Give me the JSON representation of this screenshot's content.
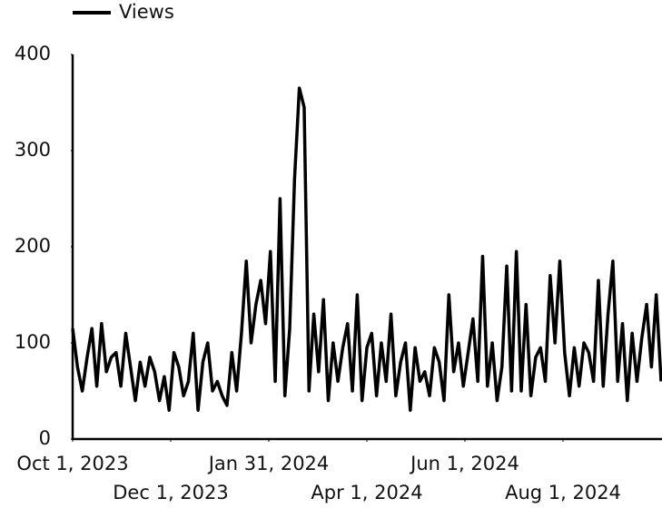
{
  "chart_data": {
    "type": "line",
    "x": [
      "2023-10-01",
      "2023-10-04",
      "2023-10-07",
      "2023-10-10",
      "2023-10-13",
      "2023-10-16",
      "2023-10-19",
      "2023-10-22",
      "2023-10-25",
      "2023-10-28",
      "2023-10-31",
      "2023-11-03",
      "2023-11-06",
      "2023-11-09",
      "2023-11-12",
      "2023-11-15",
      "2023-11-18",
      "2023-11-21",
      "2023-11-24",
      "2023-11-27",
      "2023-11-30",
      "2023-12-03",
      "2023-12-06",
      "2023-12-09",
      "2023-12-12",
      "2023-12-15",
      "2023-12-18",
      "2023-12-21",
      "2023-12-24",
      "2023-12-27",
      "2023-12-30",
      "2024-01-02",
      "2024-01-05",
      "2024-01-08",
      "2024-01-11",
      "2024-01-14",
      "2024-01-17",
      "2024-01-20",
      "2024-01-23",
      "2024-01-26",
      "2024-01-29",
      "2024-02-01",
      "2024-02-04",
      "2024-02-07",
      "2024-02-10",
      "2024-02-13",
      "2024-02-16",
      "2024-02-19",
      "2024-02-22",
      "2024-02-25",
      "2024-02-28",
      "2024-03-02",
      "2024-03-05",
      "2024-03-08",
      "2024-03-11",
      "2024-03-14",
      "2024-03-17",
      "2024-03-20",
      "2024-03-23",
      "2024-03-26",
      "2024-03-29",
      "2024-04-01",
      "2024-04-04",
      "2024-04-07",
      "2024-04-10",
      "2024-04-13",
      "2024-04-16",
      "2024-04-19",
      "2024-04-22",
      "2024-04-25",
      "2024-04-28",
      "2024-05-01",
      "2024-05-04",
      "2024-05-07",
      "2024-05-10",
      "2024-05-13",
      "2024-05-16",
      "2024-05-19",
      "2024-05-22",
      "2024-05-25",
      "2024-05-28",
      "2024-05-31",
      "2024-06-03",
      "2024-06-06",
      "2024-06-09",
      "2024-06-12",
      "2024-06-15",
      "2024-06-18",
      "2024-06-21",
      "2024-06-24",
      "2024-06-27",
      "2024-06-30",
      "2024-07-03",
      "2024-07-06",
      "2024-07-09",
      "2024-07-12",
      "2024-07-15",
      "2024-07-18",
      "2024-07-21",
      "2024-07-24",
      "2024-07-27",
      "2024-07-30",
      "2024-08-02",
      "2024-08-05",
      "2024-08-08",
      "2024-08-11",
      "2024-08-14",
      "2024-08-17",
      "2024-08-20",
      "2024-08-23",
      "2024-08-26",
      "2024-08-29",
      "2024-09-01",
      "2024-09-04",
      "2024-09-07",
      "2024-09-10",
      "2024-09-13",
      "2024-09-16",
      "2024-09-19",
      "2024-09-22",
      "2024-09-25",
      "2024-09-28",
      "2024-10-01"
    ],
    "series": [
      {
        "name": "Views",
        "color": "#000000",
        "values": [
          115,
          75,
          50,
          85,
          115,
          55,
          120,
          70,
          85,
          90,
          55,
          110,
          75,
          40,
          80,
          55,
          85,
          70,
          40,
          65,
          30,
          90,
          75,
          45,
          60,
          110,
          30,
          80,
          100,
          50,
          60,
          45,
          35,
          90,
          50,
          110,
          185,
          100,
          140,
          165,
          120,
          195,
          60,
          250,
          45,
          115,
          270,
          365,
          345,
          50,
          130,
          70,
          145,
          40,
          100,
          60,
          95,
          120,
          50,
          150,
          40,
          95,
          110,
          45,
          100,
          60,
          130,
          45,
          80,
          100,
          30,
          95,
          60,
          70,
          45,
          95,
          80,
          40,
          150,
          70,
          100,
          55,
          90,
          125,
          60,
          190,
          55,
          100,
          40,
          75,
          180,
          50,
          195,
          50,
          140,
          45,
          85,
          95,
          60,
          170,
          100,
          185,
          90,
          45,
          95,
          55,
          100,
          90,
          60,
          165,
          55,
          130,
          185,
          60,
          120,
          40,
          110,
          60,
          105,
          140,
          75,
          150,
          60
        ]
      }
    ],
    "xlim": [
      "2023-10-01",
      "2024-10-01"
    ],
    "xticks": [
      {
        "value": "2023-10-01",
        "label": "Oct 1, 2023"
      },
      {
        "value": "2023-12-01",
        "label": "Dec 1, 2023"
      },
      {
        "value": "2024-01-31",
        "label": "Jan 31, 2024"
      },
      {
        "value": "2024-04-01",
        "label": "Apr 1, 2024"
      },
      {
        "value": "2024-06-01",
        "label": "Jun 1, 2024"
      },
      {
        "value": "2024-08-01",
        "label": "Aug 1, 2024"
      }
    ],
    "ylim": [
      0,
      400
    ],
    "yticks": [
      0,
      100,
      200,
      300,
      400
    ],
    "grid": false,
    "legend": "top-left"
  }
}
